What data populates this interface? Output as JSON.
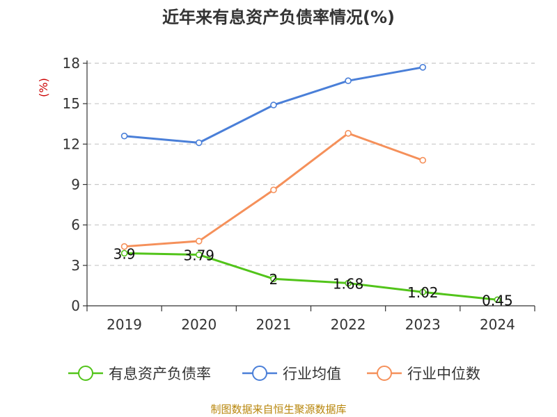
{
  "chart_data": {
    "type": "line",
    "title": "近年来有息资产负债率情况(%)",
    "ylabel": "(%)",
    "xlabel": "",
    "categories": [
      "2019",
      "2020",
      "2021",
      "2022",
      "2023",
      "2024"
    ],
    "ylim": [
      0,
      18
    ],
    "yticks": [
      0,
      3,
      6,
      9,
      12,
      15,
      18
    ],
    "grid": true,
    "legend_position": "bottom",
    "series": [
      {
        "name": "有息资产负债率",
        "color": "#52c41a",
        "values": [
          3.9,
          3.79,
          2,
          1.68,
          1.02,
          0.45
        ],
        "labels": [
          "3.9",
          "3.79",
          "2",
          "1.68",
          "1.02",
          "0.45"
        ]
      },
      {
        "name": "行业均值",
        "color": "#4a7fd8",
        "values": [
          12.6,
          12.1,
          14.9,
          16.7,
          17.7,
          null
        ]
      },
      {
        "name": "行业中位数",
        "color": "#f5905a",
        "values": [
          4.4,
          4.8,
          8.6,
          12.8,
          10.8,
          null
        ]
      }
    ],
    "source": "制图数据来自恒生聚源数据库"
  }
}
